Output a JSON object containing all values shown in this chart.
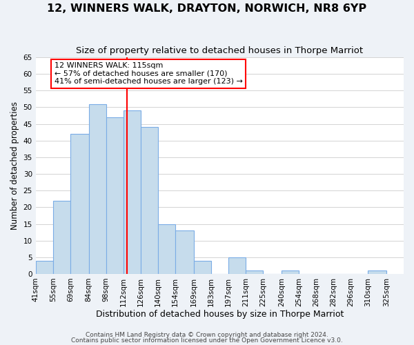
{
  "title": "12, WINNERS WALK, DRAYTON, NORWICH, NR8 6YP",
  "subtitle": "Size of property relative to detached houses in Thorpe Marriot",
  "xlabel": "Distribution of detached houses by size in Thorpe Marriot",
  "ylabel": "Number of detached properties",
  "bar_left_edges": [
    41,
    55,
    69,
    84,
    98,
    112,
    126,
    140,
    154,
    169,
    183,
    197,
    211,
    225,
    240,
    254,
    268,
    282,
    296,
    310
  ],
  "bar_heights": [
    4,
    22,
    42,
    51,
    47,
    49,
    44,
    15,
    13,
    4,
    0,
    5,
    1,
    0,
    1,
    0,
    0,
    0,
    0,
    1
  ],
  "bar_widths": [
    14,
    14,
    15,
    14,
    14,
    14,
    14,
    14,
    15,
    14,
    14,
    14,
    14,
    15,
    14,
    14,
    14,
    14,
    14,
    15
  ],
  "x_tick_labels": [
    "41sqm",
    "55sqm",
    "69sqm",
    "84sqm",
    "98sqm",
    "112sqm",
    "126sqm",
    "140sqm",
    "154sqm",
    "169sqm",
    "183sqm",
    "197sqm",
    "211sqm",
    "225sqm",
    "240sqm",
    "254sqm",
    "268sqm",
    "282sqm",
    "296sqm",
    "310sqm",
    "325sqm"
  ],
  "x_tick_positions": [
    41,
    55,
    69,
    84,
    98,
    112,
    126,
    140,
    154,
    169,
    183,
    197,
    211,
    225,
    240,
    254,
    268,
    282,
    296,
    310,
    325
  ],
  "ylim": [
    0,
    65
  ],
  "yticks": [
    0,
    5,
    10,
    15,
    20,
    25,
    30,
    35,
    40,
    45,
    50,
    55,
    60,
    65
  ],
  "xlim_min": 41,
  "xlim_max": 339,
  "bar_color": "#c6dcec",
  "bar_edge_color": "#7aace6",
  "vline_x": 115,
  "vline_color": "red",
  "annotation_title": "12 WINNERS WALK: 115sqm",
  "annotation_line1": "← 57% of detached houses are smaller (170)",
  "annotation_line2": "41% of semi-detached houses are larger (123) →",
  "footer_line1": "Contains HM Land Registry data © Crown copyright and database right 2024.",
  "footer_line2": "Contains public sector information licensed under the Open Government Licence v3.0.",
  "background_color": "#eef2f7",
  "plot_bg_color": "#ffffff",
  "title_fontsize": 11.5,
  "subtitle_fontsize": 9.5,
  "xlabel_fontsize": 9,
  "ylabel_fontsize": 8.5,
  "tick_fontsize": 7.5,
  "annotation_fontsize": 8,
  "footer_fontsize": 6.5
}
